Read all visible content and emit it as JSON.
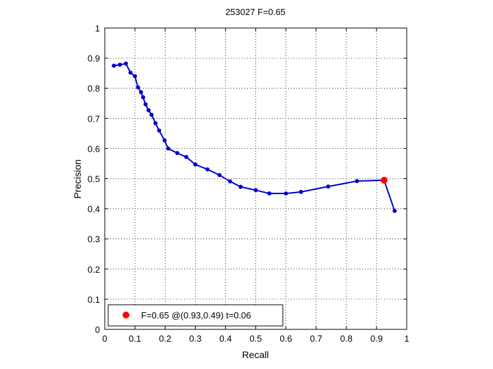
{
  "chart_data": {
    "type": "line",
    "title": "253027 F=0.65",
    "xlabel": "Recall",
    "ylabel": "Precision",
    "xlim": [
      0,
      1
    ],
    "ylim": [
      0,
      1
    ],
    "grid": true,
    "legend_position": "bottom-left",
    "xticks": [
      "0",
      "0.1",
      "0.2",
      "0.3",
      "0.4",
      "0.5",
      "0.6",
      "0.7",
      "0.8",
      "0.9",
      "1"
    ],
    "yticks": [
      "0",
      "0.1",
      "0.2",
      "0.3",
      "0.4",
      "0.5",
      "0.6",
      "0.7",
      "0.8",
      "0.9",
      "1"
    ],
    "series": [
      {
        "color": "#0000cc",
        "points": [
          [
            0.03,
            0.875
          ],
          [
            0.05,
            0.878
          ],
          [
            0.07,
            0.882
          ],
          [
            0.085,
            0.852
          ],
          [
            0.1,
            0.84
          ],
          [
            0.11,
            0.803
          ],
          [
            0.12,
            0.787
          ],
          [
            0.127,
            0.77
          ],
          [
            0.135,
            0.747
          ],
          [
            0.145,
            0.727
          ],
          [
            0.155,
            0.712
          ],
          [
            0.168,
            0.684
          ],
          [
            0.18,
            0.66
          ],
          [
            0.198,
            0.627
          ],
          [
            0.21,
            0.6
          ],
          [
            0.24,
            0.585
          ],
          [
            0.27,
            0.572
          ],
          [
            0.3,
            0.547
          ],
          [
            0.34,
            0.531
          ],
          [
            0.38,
            0.512
          ],
          [
            0.415,
            0.491
          ],
          [
            0.45,
            0.473
          ],
          [
            0.5,
            0.462
          ],
          [
            0.545,
            0.451
          ],
          [
            0.6,
            0.451
          ],
          [
            0.65,
            0.456
          ],
          [
            0.74,
            0.474
          ],
          [
            0.835,
            0.492
          ],
          [
            0.925,
            0.495
          ],
          [
            0.96,
            0.393
          ]
        ]
      }
    ],
    "highlight": {
      "x": 0.925,
      "y": 0.495,
      "color": "#ff0000"
    },
    "legend": {
      "label": "F=0.65 @(0.93,0.49) t=0.06",
      "color": "#ff0000"
    }
  }
}
